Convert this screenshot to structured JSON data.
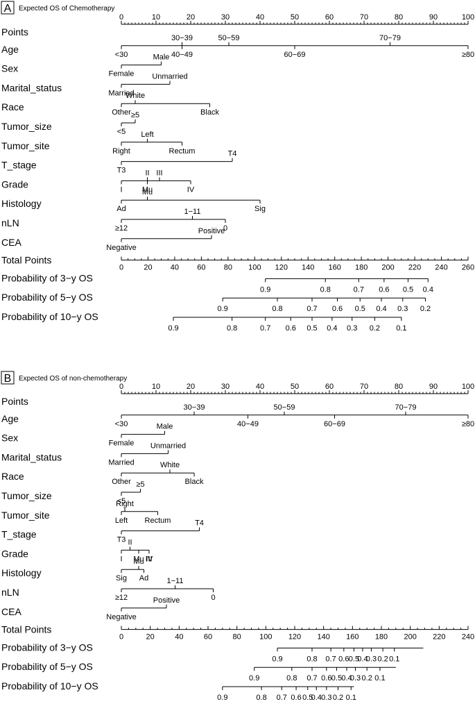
{
  "chart_data": [
    {
      "type": "nomogram",
      "panel_letter": "A",
      "title": "Expected OS of Chemotherapy",
      "points_axis": {
        "label": "Points",
        "ticks": [
          0,
          10,
          20,
          30,
          40,
          50,
          60,
          70,
          80,
          90,
          100
        ]
      },
      "variables": [
        {
          "name": "Age",
          "categories": [
            {
              "label": "<30",
              "points": 0
            },
            {
              "label": "30−39",
              "points": 17.5
            },
            {
              "label": "40−49",
              "points": 17.5
            },
            {
              "label": "50−59",
              "points": 31
            },
            {
              "label": "60−69",
              "points": 50
            },
            {
              "label": "70−79",
              "points": 77.5
            },
            {
              "label": "≥80",
              "points": 100
            }
          ]
        },
        {
          "name": "Sex",
          "categories": [
            {
              "label": "Male",
              "points": 11.5
            },
            {
              "label": "Female",
              "points": 0
            }
          ]
        },
        {
          "name": "Marital_status",
          "categories": [
            {
              "label": "Unmarried",
              "points": 14
            },
            {
              "label": "Married",
              "points": 0
            }
          ]
        },
        {
          "name": "Race",
          "categories": [
            {
              "label": "White",
              "points": 4
            },
            {
              "label": "Other",
              "points": 0
            },
            {
              "label": "Black",
              "points": 25.5
            }
          ]
        },
        {
          "name": "Tumor_size",
          "categories": [
            {
              "label": "≥5",
              "points": 4
            },
            {
              "label": "<5",
              "points": 0
            }
          ]
        },
        {
          "name": "Tumor_site",
          "categories": [
            {
              "label": "Left",
              "points": 7.5
            },
            {
              "label": "Right",
              "points": 0
            },
            {
              "label": "Rectum",
              "points": 17.5
            }
          ]
        },
        {
          "name": "T_stage",
          "categories": [
            {
              "label": "T4",
              "points": 32
            },
            {
              "label": "T3",
              "points": 0
            }
          ]
        },
        {
          "name": "Grade",
          "categories": [
            {
              "label": "II",
              "points": 7.5
            },
            {
              "label": "IV",
              "points": 20
            },
            {
              "label": "I",
              "points": 0
            },
            {
              "label": "Mu",
              "points": 7.5
            },
            {
              "label": "III",
              "points": 11
            }
          ]
        },
        {
          "name": "Histology",
          "categories": [
            {
              "label": "Ad",
              "points": 0
            },
            {
              "label": "Sig",
              "points": 40
            },
            {
              "label": "Mu",
              "points": 7.5
            }
          ]
        },
        {
          "name": "nLN",
          "categories": [
            {
              "label": "1−11",
              "points": 20.5
            },
            {
              "label": "≥12",
              "points": 0
            },
            {
              "label": "0",
              "points": 30
            }
          ]
        },
        {
          "name": "CEA",
          "categories": [
            {
              "label": "Positive",
              "points": 26
            },
            {
              "label": "Negative",
              "points": 0
            }
          ]
        }
      ],
      "total_points_axis": {
        "label": "Total Points",
        "ticks": [
          0,
          20,
          40,
          60,
          80,
          100,
          120,
          140,
          160,
          180,
          200,
          220,
          240,
          260
        ]
      },
      "probability_axes": [
        {
          "label": "Probability of 3−y OS",
          "ticks": [
            0.9,
            0.8,
            0.7,
            0.6,
            0.5,
            0.4
          ],
          "total_points": [
            108,
            153,
            178,
            197,
            215,
            230
          ],
          "axis_range": [
            108,
            230
          ]
        },
        {
          "label": "Probability of 5−y OS",
          "ticks": [
            0.9,
            0.8,
            0.7,
            0.6,
            0.5,
            0.4,
            0.3,
            0.2
          ],
          "total_points": [
            76,
            117,
            143,
            162,
            179,
            195,
            211,
            228
          ],
          "axis_range": [
            76,
            228
          ]
        },
        {
          "label": "Probability of 10−y OS",
          "ticks": [
            0.9,
            0.8,
            0.7,
            0.6,
            0.5,
            0.4,
            0.3,
            0.2,
            0.1
          ],
          "total_points": [
            39,
            83,
            108,
            127,
            143,
            158,
            173,
            190,
            210
          ],
          "axis_range": [
            39,
            210
          ]
        }
      ]
    },
    {
      "type": "nomogram",
      "panel_letter": "B",
      "title": "Expected OS of non-chemotherapy",
      "points_axis": {
        "label": "Points",
        "ticks": [
          0,
          10,
          20,
          30,
          40,
          50,
          60,
          70,
          80,
          90,
          100
        ]
      },
      "variables": [
        {
          "name": "Age",
          "categories": [
            {
              "label": "<30",
              "points": 0
            },
            {
              "label": "30−39",
              "points": 21
            },
            {
              "label": "40−49",
              "points": 36.5
            },
            {
              "label": "50−59",
              "points": 47
            },
            {
              "label": "60−69",
              "points": 61.5
            },
            {
              "label": "70−79",
              "points": 82
            },
            {
              "label": "≥80",
              "points": 100
            }
          ]
        },
        {
          "name": "Sex",
          "categories": [
            {
              "label": "Male",
              "points": 12.5
            },
            {
              "label": "Female",
              "points": 0
            }
          ]
        },
        {
          "name": "Marital_status",
          "categories": [
            {
              "label": "Unmarried",
              "points": 13.5
            },
            {
              "label": "Married",
              "points": 0
            }
          ]
        },
        {
          "name": "Race",
          "categories": [
            {
              "label": "White",
              "points": 14
            },
            {
              "label": "Other",
              "points": 0
            },
            {
              "label": "Black",
              "points": 21
            }
          ]
        },
        {
          "name": "Tumor_size",
          "categories": [
            {
              "label": "≥5",
              "points": 5.5
            },
            {
              "label": "<5",
              "points": 0
            }
          ]
        },
        {
          "name": "Tumor_site",
          "categories": [
            {
              "label": "Right",
              "points": 1
            },
            {
              "label": "Left",
              "points": 0
            },
            {
              "label": "Rectum",
              "points": 10.5
            }
          ]
        },
        {
          "name": "T_stage",
          "categories": [
            {
              "label": "T4",
              "points": 22.5
            },
            {
              "label": "T3",
              "points": 0
            }
          ]
        },
        {
          "name": "Grade",
          "categories": [
            {
              "label": "II",
              "points": 2.5
            },
            {
              "label": "III",
              "points": 8
            },
            {
              "label": "I",
              "points": 0
            },
            {
              "label": "Mu",
              "points": 5
            },
            {
              "label": "IV",
              "points": 8
            }
          ]
        },
        {
          "name": "Histology",
          "categories": [
            {
              "label": "Sig",
              "points": 0
            },
            {
              "label": "Ad",
              "points": 6.5
            },
            {
              "label": "Mu",
              "points": 5
            }
          ]
        },
        {
          "name": "nLN",
          "categories": [
            {
              "label": "1−11",
              "points": 15.5
            },
            {
              "label": "≥12",
              "points": 0
            },
            {
              "label": "0",
              "points": 26.5
            }
          ]
        },
        {
          "name": "CEA",
          "categories": [
            {
              "label": "Positive",
              "points": 13
            },
            {
              "label": "Negative",
              "points": 0
            }
          ]
        }
      ],
      "total_points_axis": {
        "label": "Total Points",
        "ticks": [
          0,
          20,
          40,
          60,
          80,
          100,
          120,
          140,
          160,
          180,
          200,
          220,
          240
        ]
      },
      "probability_axes": [
        {
          "label": "Probability of 3−y OS",
          "ticks": [
            0.9,
            0.8,
            0.7,
            0.6,
            0.5,
            0.4,
            0.3,
            0.2,
            0.1
          ],
          "total_points": [
            108,
            132,
            145,
            154,
            161,
            167,
            173,
            181,
            189
          ],
          "axis_range": [
            108,
            209
          ]
        },
        {
          "label": "Probability of 5−y OS",
          "ticks": [
            0.9,
            0.8,
            0.7,
            0.6,
            0.5,
            0.4,
            0.3,
            0.2,
            0.1
          ],
          "total_points": [
            92,
            118,
            132,
            142,
            149,
            156,
            162,
            170,
            179
          ],
          "axis_range": [
            92,
            190
          ]
        },
        {
          "label": "Probability of 10−y OS",
          "ticks": [
            0.9,
            0.8,
            0.7,
            0.6,
            0.5,
            0.4,
            0.3,
            0.2,
            0.1
          ],
          "total_points": [
            70,
            97,
            111,
            121,
            129,
            135,
            142,
            150,
            159
          ],
          "axis_range": [
            70,
            161
          ]
        }
      ]
    }
  ]
}
